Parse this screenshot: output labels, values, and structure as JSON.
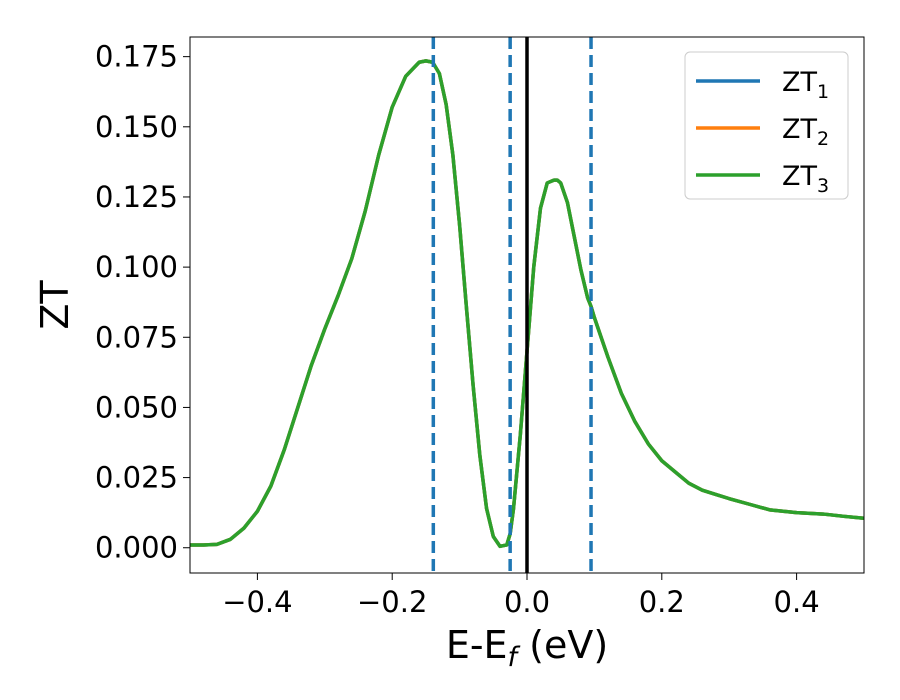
{
  "chart_data": {
    "type": "line",
    "xlabel": "E-E",
    "xlabel_sub": "f",
    "xlabel_unit": " (eV)",
    "ylabel": "ZT",
    "xlim": [
      -0.5,
      0.5
    ],
    "ylim": [
      -0.009,
      0.182
    ],
    "xticks": [
      -0.4,
      -0.2,
      0.0,
      0.2,
      0.4
    ],
    "xtick_labels": [
      "−0.4",
      "−0.2",
      "0.0",
      "0.2",
      "0.4"
    ],
    "yticks": [
      0.0,
      0.025,
      0.05,
      0.075,
      0.1,
      0.125,
      0.15,
      0.175
    ],
    "ytick_labels": [
      "0.000",
      "0.025",
      "0.050",
      "0.075",
      "0.100",
      "0.125",
      "0.150",
      "0.175"
    ],
    "grid": false,
    "legend_position": "top-right",
    "x": [
      -0.5,
      -0.48,
      -0.46,
      -0.44,
      -0.42,
      -0.4,
      -0.38,
      -0.36,
      -0.34,
      -0.32,
      -0.3,
      -0.28,
      -0.26,
      -0.24,
      -0.22,
      -0.2,
      -0.18,
      -0.16,
      -0.15,
      -0.14,
      -0.13,
      -0.12,
      -0.11,
      -0.1,
      -0.09,
      -0.08,
      -0.07,
      -0.06,
      -0.05,
      -0.04,
      -0.03,
      -0.025,
      -0.02,
      -0.01,
      0.0,
      0.01,
      0.02,
      0.03,
      0.04,
      0.045,
      0.05,
      0.06,
      0.07,
      0.08,
      0.09,
      0.095,
      0.1,
      0.12,
      0.14,
      0.16,
      0.18,
      0.2,
      0.22,
      0.24,
      0.26,
      0.28,
      0.3,
      0.33,
      0.36,
      0.4,
      0.44,
      0.47,
      0.5
    ],
    "series": [
      {
        "name": "ZT",
        "sub": "1",
        "color": "#1f77b4",
        "values": [
          0.001,
          0.001,
          0.0012,
          0.003,
          0.007,
          0.013,
          0.022,
          0.035,
          0.05,
          0.065,
          0.078,
          0.09,
          0.103,
          0.12,
          0.14,
          0.157,
          0.168,
          0.173,
          0.1735,
          0.173,
          0.169,
          0.158,
          0.14,
          0.115,
          0.086,
          0.058,
          0.033,
          0.014,
          0.004,
          0.0005,
          0.001,
          0.005,
          0.014,
          0.04,
          0.07,
          0.1,
          0.121,
          0.13,
          0.131,
          0.131,
          0.13,
          0.123,
          0.111,
          0.099,
          0.089,
          0.086,
          0.082,
          0.068,
          0.055,
          0.045,
          0.037,
          0.031,
          0.027,
          0.023,
          0.0205,
          0.019,
          0.0175,
          0.0155,
          0.0135,
          0.0125,
          0.012,
          0.0112,
          0.0105
        ]
      },
      {
        "name": "ZT",
        "sub": "2",
        "color": "#ff7f0e",
        "values": [
          0.001,
          0.001,
          0.0012,
          0.003,
          0.007,
          0.013,
          0.022,
          0.035,
          0.05,
          0.065,
          0.078,
          0.09,
          0.103,
          0.12,
          0.14,
          0.157,
          0.168,
          0.173,
          0.1735,
          0.173,
          0.169,
          0.158,
          0.14,
          0.115,
          0.086,
          0.058,
          0.033,
          0.014,
          0.004,
          0.0005,
          0.001,
          0.005,
          0.014,
          0.04,
          0.07,
          0.1,
          0.121,
          0.13,
          0.131,
          0.131,
          0.13,
          0.123,
          0.111,
          0.099,
          0.089,
          0.086,
          0.082,
          0.068,
          0.055,
          0.045,
          0.037,
          0.031,
          0.027,
          0.023,
          0.0205,
          0.019,
          0.0175,
          0.0155,
          0.0135,
          0.0125,
          0.012,
          0.0112,
          0.0105
        ]
      },
      {
        "name": "ZT",
        "sub": "3",
        "color": "#2ca02c",
        "values": [
          0.001,
          0.001,
          0.0012,
          0.003,
          0.007,
          0.013,
          0.022,
          0.035,
          0.05,
          0.065,
          0.078,
          0.09,
          0.103,
          0.12,
          0.14,
          0.157,
          0.168,
          0.173,
          0.1735,
          0.173,
          0.169,
          0.158,
          0.14,
          0.115,
          0.086,
          0.058,
          0.033,
          0.014,
          0.004,
          0.0005,
          0.001,
          0.005,
          0.014,
          0.04,
          0.07,
          0.1,
          0.121,
          0.13,
          0.131,
          0.131,
          0.13,
          0.123,
          0.111,
          0.099,
          0.089,
          0.086,
          0.082,
          0.068,
          0.055,
          0.045,
          0.037,
          0.031,
          0.027,
          0.023,
          0.0205,
          0.019,
          0.0175,
          0.0155,
          0.0135,
          0.0125,
          0.012,
          0.0112,
          0.0105
        ]
      }
    ],
    "vlines": [
      {
        "x": -0.139,
        "style": "dashed",
        "color": "#1f77b4"
      },
      {
        "x": -0.025,
        "style": "dashed",
        "color": "#1f77b4"
      },
      {
        "x": 0.0,
        "style": "solid",
        "color": "#000000"
      },
      {
        "x": 0.095,
        "style": "dashed",
        "color": "#1f77b4"
      }
    ]
  }
}
